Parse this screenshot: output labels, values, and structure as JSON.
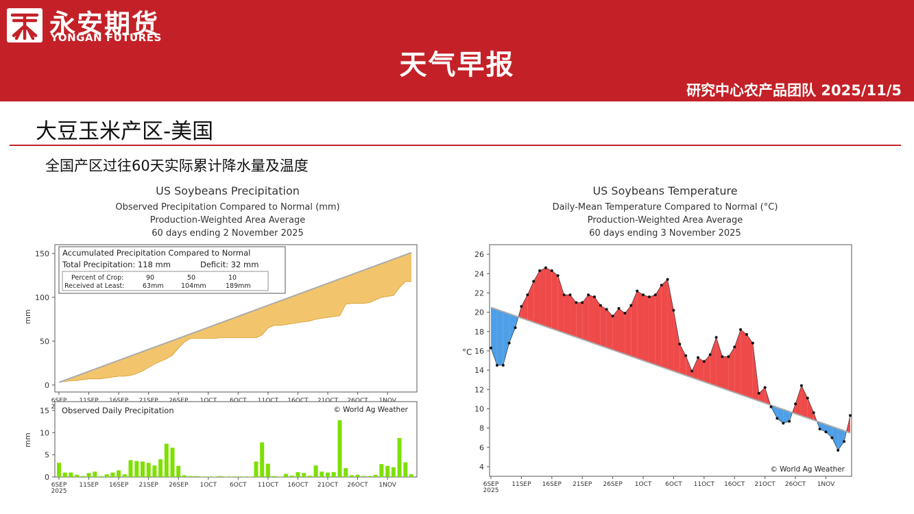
{
  "brand": {
    "name_cn": "永安期货",
    "name_en": "YONGAN FUTURES"
  },
  "header": {
    "title": "天气早报",
    "team_date": "研究中心农产品团队  2025/11/5"
  },
  "section_title": "大豆玉米产区-美国",
  "subtitle": "全国产区过往60天实际累计降水量及温度",
  "colors": {
    "header_red": "#c32127",
    "precip_fill": "#f2c56d",
    "daily_bar": "#7de001",
    "temp_above": "#ef4a4a",
    "temp_below": "#4e9fe8",
    "normal_line": "#aaaaaa"
  },
  "chart_data": [
    {
      "type": "area",
      "title": "US Soybeans Precipitation",
      "subtitle_lines": [
        "Observed Precipitation Compared to Normal (mm)",
        "Production-Weighted Area Average",
        "60 days ending 2 November 2025"
      ],
      "ylabel": "mm",
      "ylim": [
        -8,
        160
      ],
      "yticks": [
        0,
        50,
        100,
        150
      ],
      "x_tick_labels": [
        "6SEP",
        "11SEP",
        "16SEP",
        "21SEP",
        "26SEP",
        "1OCT",
        "6OCT",
        "11OCT",
        "16OCT",
        "21OCT",
        "26OCT",
        "1NOV"
      ],
      "x_start_label": "2025",
      "legend": {
        "title": "Accumulated Precipitation Compared to Normal",
        "total": "Total Precipitation: 118 mm",
        "deficit": "Deficit: 32 mm",
        "percent_label": "Percent of Crop:",
        "percents": [
          "90",
          "50",
          "10"
        ],
        "received_label": "Received at Least:",
        "received": [
          "63mm",
          "104mm",
          "189mm"
        ]
      },
      "series": [
        {
          "name": "Normal",
          "x": [
            0,
            59
          ],
          "values": [
            3,
            151
          ]
        },
        {
          "name": "Observed",
          "x": [
            0,
            1,
            2,
            3,
            4,
            5,
            6,
            7,
            8,
            9,
            10,
            11,
            12,
            13,
            14,
            15,
            16,
            17,
            18,
            19,
            20,
            21,
            22,
            23,
            24,
            25,
            26,
            27,
            28,
            29,
            30,
            31,
            32,
            33,
            34,
            35,
            36,
            37,
            38,
            39,
            40,
            41,
            42,
            43,
            44,
            45,
            46,
            47,
            48,
            49,
            50,
            51,
            52,
            53,
            54,
            55,
            56,
            57,
            58,
            59
          ],
          "values": [
            3,
            4,
            5,
            5,
            6,
            7,
            7,
            7,
            8,
            9,
            10,
            10,
            11,
            13,
            16,
            20,
            24,
            27,
            30,
            34,
            42,
            49,
            53,
            53,
            53,
            53,
            53,
            54,
            54,
            54,
            54,
            54,
            54,
            54,
            57,
            65,
            68,
            68,
            69,
            70,
            71,
            72,
            73,
            75,
            76,
            77,
            78,
            79,
            92,
            93,
            93,
            93,
            94,
            97,
            100,
            101,
            102,
            111,
            118,
            118
          ]
        }
      ]
    },
    {
      "type": "bar",
      "title": "Observed Daily Precipitation",
      "credit": "© World Ag Weather",
      "ylabel": "mm",
      "ylim": [
        0,
        17
      ],
      "yticks": [
        0,
        5,
        10,
        15
      ],
      "x_tick_labels": [
        "6SEP",
        "11SEP",
        "16SEP",
        "21SEP",
        "26SEP",
        "1OCT",
        "6OCT",
        "11OCT",
        "16OCT",
        "21OCT",
        "26OCT",
        "1NOV"
      ],
      "x_start_label": "2025",
      "values": [
        3.2,
        1,
        1,
        0.5,
        0.2,
        0.9,
        1.2,
        0.2,
        0.6,
        1,
        1.5,
        0.6,
        3.8,
        3.6,
        3.5,
        3.2,
        2.6,
        4,
        7.5,
        6.6,
        2.5,
        0.4,
        0.2,
        0.2,
        0.1,
        0.1,
        0.1,
        0.2,
        0.1,
        0.1,
        0.1,
        0.1,
        0.1,
        3.5,
        7.8,
        3,
        0.2,
        0.1,
        0.7,
        0.3,
        1.1,
        0.9,
        0.3,
        2.6,
        1.2,
        1,
        1.1,
        12.8,
        2,
        0.4,
        0.5,
        0.2,
        0.2,
        0.5,
        2.9,
        2.5,
        2.2,
        8.8,
        3.3,
        0.6
      ]
    },
    {
      "type": "line",
      "title": "US Soybeans Temperature",
      "subtitle_lines": [
        "Daily-Mean Temperature Compared to Normal (°C)",
        "Production-Weighted Area Average",
        "60 days ending 3 November 2025"
      ],
      "ylabel": "°C",
      "ylim": [
        3,
        27
      ],
      "yticks": [
        4,
        6,
        8,
        10,
        12,
        14,
        16,
        18,
        20,
        22,
        24,
        26
      ],
      "x_tick_labels": [
        "6SEP",
        "11SEP",
        "16SEP",
        "21SEP",
        "26SEP",
        "1OCT",
        "6OCT",
        "11OCT",
        "16OCT",
        "21OCT",
        "26OCT",
        "1NOV"
      ],
      "x_start_label": "2025",
      "credit": "© World Ag Weather",
      "series": [
        {
          "name": "Normal",
          "x": [
            0,
            59
          ],
          "values": [
            20.5,
            7.5
          ]
        },
        {
          "name": "Observed",
          "x": [
            0,
            1,
            2,
            3,
            4,
            5,
            6,
            7,
            8,
            9,
            10,
            11,
            12,
            13,
            14,
            15,
            16,
            17,
            18,
            19,
            20,
            21,
            22,
            23,
            24,
            25,
            26,
            27,
            28,
            29,
            30,
            31,
            32,
            33,
            34,
            35,
            36,
            37,
            38,
            39,
            40,
            41,
            42,
            43,
            44,
            45,
            46,
            47,
            48,
            49,
            50,
            51,
            52,
            53,
            54,
            55,
            56,
            57,
            58,
            59
          ],
          "values": [
            16.3,
            14.5,
            14.5,
            16.8,
            18.4,
            20.6,
            21.8,
            23.2,
            24.3,
            24.6,
            24.3,
            23.8,
            21.8,
            21.8,
            21,
            21,
            21.8,
            21.6,
            20.7,
            20.3,
            19.6,
            20.4,
            19.9,
            20.7,
            22.2,
            21.8,
            21.6,
            21.8,
            22.8,
            23.4,
            20.2,
            16.7,
            15.5,
            13.9,
            15.3,
            14.9,
            15.6,
            17.4,
            15.4,
            15.4,
            16.4,
            18.2,
            17.7,
            16.8,
            11.6,
            12.2,
            10.2,
            9,
            8.5,
            8.7,
            10.5,
            12.4,
            11.1,
            9.6,
            7.9,
            7.6,
            7,
            5.7,
            6.6,
            9.3
          ]
        }
      ]
    }
  ]
}
